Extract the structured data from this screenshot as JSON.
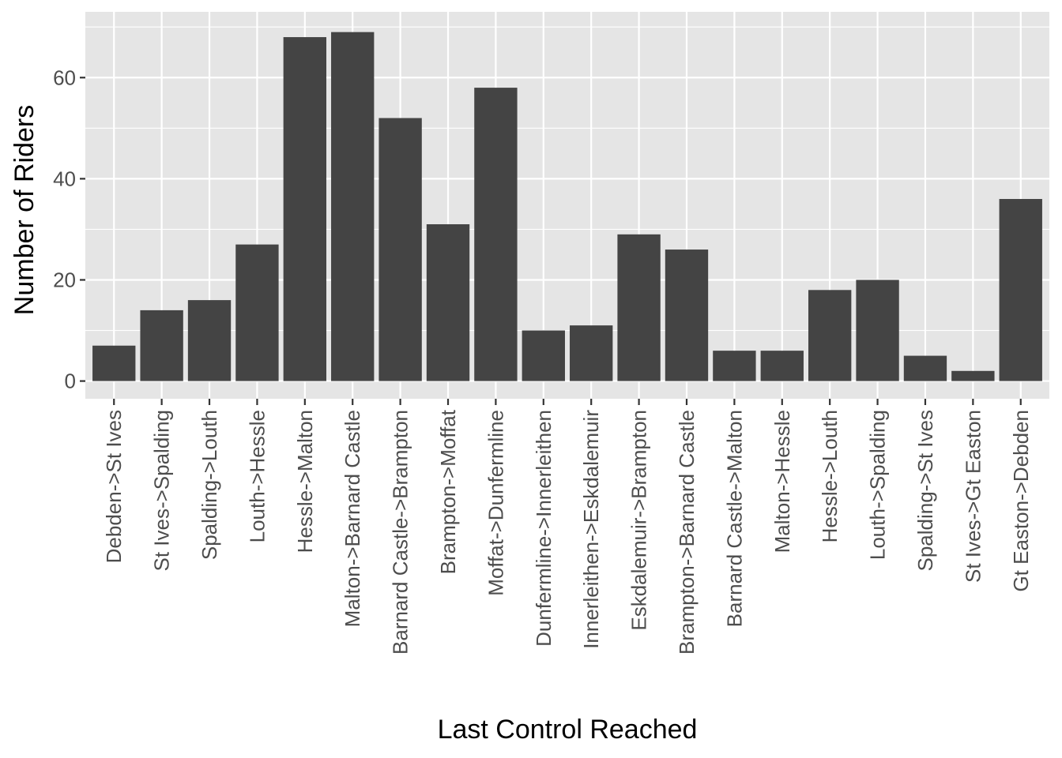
{
  "chart_data": {
    "type": "bar",
    "xlabel": "Last Control Reached",
    "ylabel": "Number of Riders",
    "ylim": [
      -3.5,
      73
    ],
    "yticks": [
      0,
      20,
      40,
      60
    ],
    "grid": true,
    "categories": [
      "Debden->St Ives",
      "St Ives->Spalding",
      "Spalding->Louth",
      "Louth->Hessle",
      "Hessle->Malton",
      "Malton->Barnard Castle",
      "Barnard Castle->Brampton",
      "Brampton->Moffat",
      "Moffat->Dunfermline",
      "Dunfermline->Innerleithen",
      "Innerleithen->Eskdalemuir",
      "Eskdalemuir->Brampton",
      "Brampton->Barnard Castle",
      "Barnard Castle->Malton",
      "Malton->Hessle",
      "Hessle->Louth",
      "Louth->Spalding",
      "Spalding->St Ives",
      "St Ives->Gt Easton",
      "Gt Easton->Debden"
    ],
    "values": [
      7,
      14,
      16,
      27,
      68,
      69,
      52,
      31,
      58,
      10,
      11,
      29,
      26,
      6,
      6,
      18,
      20,
      5,
      2,
      36
    ],
    "colors": {
      "panel_background": "#e5e5e5",
      "grid": "#ffffff",
      "bar": "#444444",
      "tick_text": "#4d4d4d",
      "tick_mark": "#333333"
    }
  }
}
